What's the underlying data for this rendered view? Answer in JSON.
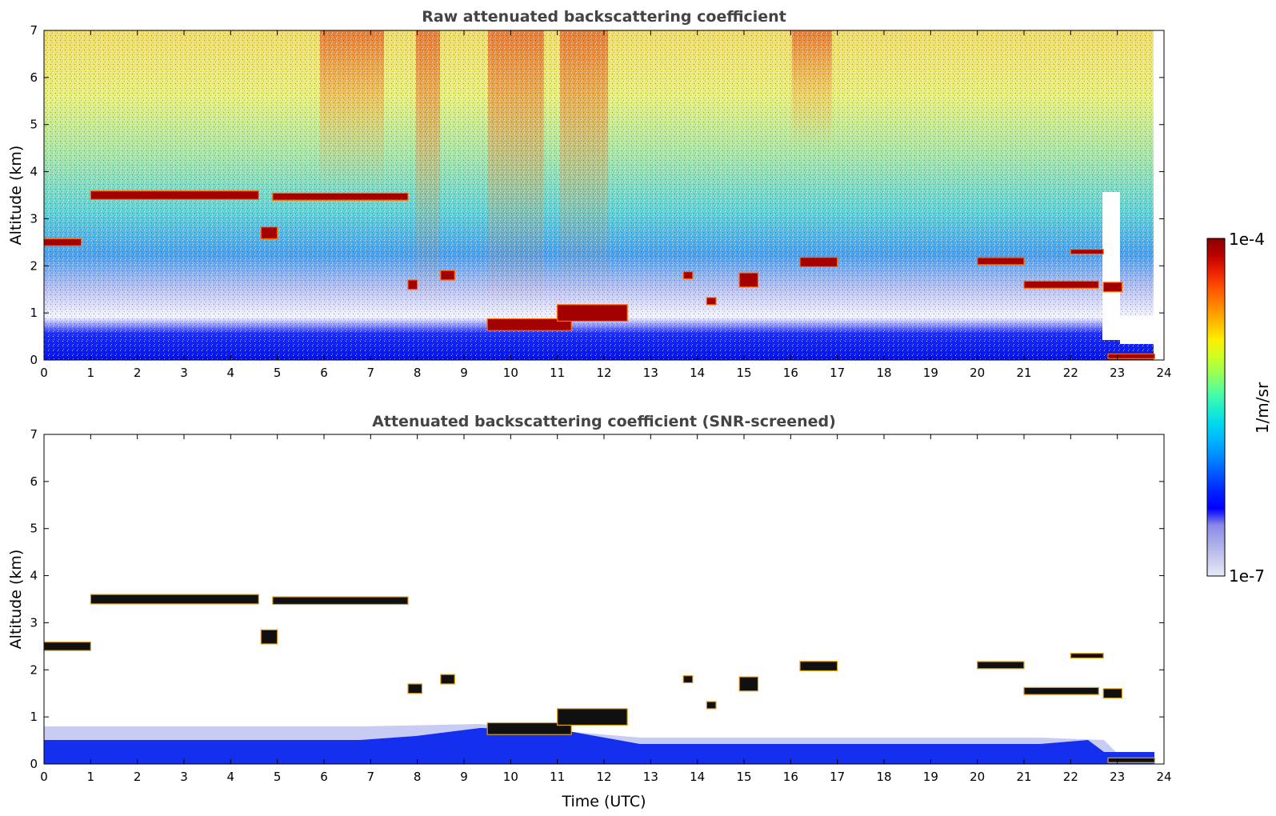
{
  "figure": {
    "colorbar": {
      "max_label": "1e-4",
      "min_label": "1e-7",
      "unit_label": "1/m/sr",
      "colors": [
        "#e9e9f7",
        "#c9caef",
        "#aaaaea",
        "#8a8ae8",
        "#0000ff",
        "#0022ff",
        "#0055ff",
        "#0088ff",
        "#00b2ff",
        "#00d8ee",
        "#22f0c8",
        "#55ff99",
        "#99ff55",
        "#ccff22",
        "#ffee00",
        "#ffbb00",
        "#ff8800",
        "#ff5500",
        "#ee2200",
        "#bb0000",
        "#8b0000"
      ]
    }
  },
  "chart_data": [
    {
      "type": "heatmap",
      "title": "Raw attenuated backscattering coefficient",
      "xlabel": "",
      "ylabel": "Altitude (km)",
      "xlim": [
        0,
        24
      ],
      "ylim": [
        0,
        7
      ],
      "x_ticks": [
        "0",
        "1",
        "2",
        "3",
        "4",
        "5",
        "6",
        "7",
        "8",
        "9",
        "10",
        "11",
        "12",
        "13",
        "14",
        "15",
        "16",
        "17",
        "18",
        "19",
        "20",
        "21",
        "22",
        "23",
        "24"
      ],
      "y_ticks": [
        "0",
        "1",
        "2",
        "3",
        "4",
        "5",
        "6",
        "7"
      ],
      "color_scale": {
        "min": 1e-07,
        "max": 0.0001,
        "scale": "log",
        "unit": "1/m/sr"
      },
      "cloud_layers": [
        {
          "t_start": 0.0,
          "t_end": 0.8,
          "alt_km": 2.5,
          "thickness_km": 0.15
        },
        {
          "t_start": 1.0,
          "t_end": 4.6,
          "alt_km": 3.5,
          "thickness_km": 0.18
        },
        {
          "t_start": 4.65,
          "t_end": 5.0,
          "alt_km": 2.7,
          "thickness_km": 0.25
        },
        {
          "t_start": 4.9,
          "t_end": 7.8,
          "alt_km": 3.47,
          "thickness_km": 0.15
        },
        {
          "t_start": 7.8,
          "t_end": 8.0,
          "alt_km": 1.6,
          "thickness_km": 0.2
        },
        {
          "t_start": 8.5,
          "t_end": 8.8,
          "alt_km": 1.8,
          "thickness_km": 0.2
        },
        {
          "t_start": 9.5,
          "t_end": 11.3,
          "alt_km": 0.75,
          "thickness_km": 0.25
        },
        {
          "t_start": 11.0,
          "t_end": 12.5,
          "alt_km": 1.0,
          "thickness_km": 0.35
        },
        {
          "t_start": 13.7,
          "t_end": 13.9,
          "alt_km": 1.8,
          "thickness_km": 0.15
        },
        {
          "t_start": 14.2,
          "t_end": 14.4,
          "alt_km": 1.25,
          "thickness_km": 0.15
        },
        {
          "t_start": 14.9,
          "t_end": 15.3,
          "alt_km": 1.7,
          "thickness_km": 0.3
        },
        {
          "t_start": 16.2,
          "t_end": 17.0,
          "alt_km": 2.08,
          "thickness_km": 0.2
        },
        {
          "t_start": 20.0,
          "t_end": 21.0,
          "alt_km": 2.1,
          "thickness_km": 0.15
        },
        {
          "t_start": 21.0,
          "t_end": 22.6,
          "alt_km": 1.6,
          "thickness_km": 0.15
        },
        {
          "t_start": 22.0,
          "t_end": 22.7,
          "alt_km": 2.3,
          "thickness_km": 0.1
        },
        {
          "t_start": 22.7,
          "t_end": 23.1,
          "alt_km": 1.55,
          "thickness_km": 0.2
        },
        {
          "t_start": 22.8,
          "t_end": 23.8,
          "alt_km": 0.08,
          "thickness_km": 0.1
        }
      ]
    },
    {
      "type": "heatmap",
      "title": "Attenuated backscattering coefficient (SNR-screened)",
      "xlabel": "Time (UTC)",
      "ylabel": "Altitude (km)",
      "xlim": [
        0,
        24
      ],
      "ylim": [
        0,
        7
      ],
      "x_ticks": [
        "0",
        "1",
        "2",
        "3",
        "4",
        "5",
        "6",
        "7",
        "8",
        "9",
        "10",
        "11",
        "12",
        "13",
        "14",
        "15",
        "16",
        "17",
        "18",
        "19",
        "20",
        "21",
        "22",
        "23",
        "24"
      ],
      "y_ticks": [
        "0",
        "1",
        "2",
        "3",
        "4",
        "5",
        "6",
        "7"
      ],
      "color_scale": {
        "min": 1e-07,
        "max": 0.0001,
        "scale": "log",
        "unit": "1/m/sr"
      },
      "cloud_layers": [
        {
          "t_start": 0.0,
          "t_end": 1.0,
          "alt_km": 2.5,
          "thickness_km": 0.18
        },
        {
          "t_start": 1.0,
          "t_end": 4.6,
          "alt_km": 3.5,
          "thickness_km": 0.2
        },
        {
          "t_start": 4.65,
          "t_end": 5.0,
          "alt_km": 2.7,
          "thickness_km": 0.3
        },
        {
          "t_start": 4.9,
          "t_end": 7.8,
          "alt_km": 3.47,
          "thickness_km": 0.16
        },
        {
          "t_start": 7.8,
          "t_end": 8.1,
          "alt_km": 1.6,
          "thickness_km": 0.2
        },
        {
          "t_start": 8.5,
          "t_end": 8.8,
          "alt_km": 1.8,
          "thickness_km": 0.2
        },
        {
          "t_start": 9.5,
          "t_end": 11.3,
          "alt_km": 0.75,
          "thickness_km": 0.25
        },
        {
          "t_start": 11.0,
          "t_end": 12.5,
          "alt_km": 1.0,
          "thickness_km": 0.35
        },
        {
          "t_start": 13.7,
          "t_end": 13.9,
          "alt_km": 1.8,
          "thickness_km": 0.15
        },
        {
          "t_start": 14.2,
          "t_end": 14.4,
          "alt_km": 1.25,
          "thickness_km": 0.15
        },
        {
          "t_start": 14.9,
          "t_end": 15.3,
          "alt_km": 1.7,
          "thickness_km": 0.3
        },
        {
          "t_start": 16.2,
          "t_end": 17.0,
          "alt_km": 2.08,
          "thickness_km": 0.2
        },
        {
          "t_start": 20.0,
          "t_end": 21.0,
          "alt_km": 2.1,
          "thickness_km": 0.15
        },
        {
          "t_start": 21.0,
          "t_end": 22.6,
          "alt_km": 1.55,
          "thickness_km": 0.15
        },
        {
          "t_start": 22.0,
          "t_end": 22.7,
          "alt_km": 2.3,
          "thickness_km": 0.1
        },
        {
          "t_start": 22.7,
          "t_end": 23.1,
          "alt_km": 1.5,
          "thickness_km": 0.2
        },
        {
          "t_start": 22.8,
          "t_end": 23.8,
          "alt_km": 0.08,
          "thickness_km": 0.1
        }
      ]
    }
  ]
}
